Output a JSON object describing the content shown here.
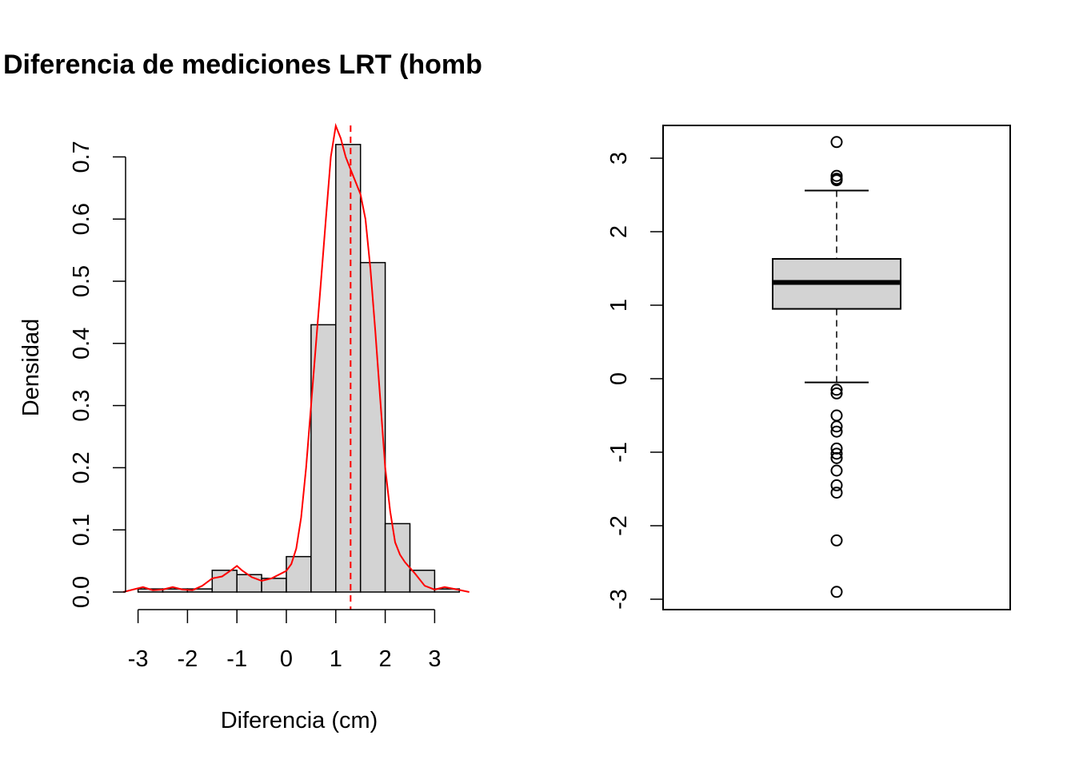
{
  "page_title": "Diferencia de mediciones LRT (homb",
  "chart_data": [
    {
      "type": "bar",
      "subtype": "histogram-with-density",
      "title": "Diferencia de mediciones LRT (homb",
      "xlabel": "Diferencia (cm)",
      "ylabel": "Densidad",
      "xlim": [
        -3.3,
        3.7
      ],
      "ylim": [
        0,
        0.75
      ],
      "x_ticks": [
        "-3",
        "-2",
        "-1",
        "0",
        "1",
        "2",
        "3"
      ],
      "y_ticks": [
        "0.0",
        "0.1",
        "0.2",
        "0.3",
        "0.4",
        "0.5",
        "0.6",
        "0.7"
      ],
      "bins": [
        {
          "from": -3.0,
          "to": -2.5,
          "density": 0.005
        },
        {
          "from": -2.5,
          "to": -2.0,
          "density": 0.005
        },
        {
          "from": -2.0,
          "to": -1.5,
          "density": 0.005
        },
        {
          "from": -1.5,
          "to": -1.0,
          "density": 0.035
        },
        {
          "from": -1.0,
          "to": -0.5,
          "density": 0.028
        },
        {
          "from": -0.5,
          "to": 0.0,
          "density": 0.022
        },
        {
          "from": 0.0,
          "to": 0.5,
          "density": 0.057
        },
        {
          "from": 0.5,
          "to": 1.0,
          "density": 0.43
        },
        {
          "from": 1.0,
          "to": 1.5,
          "density": 0.72
        },
        {
          "from": 1.5,
          "to": 2.0,
          "density": 0.53
        },
        {
          "from": 2.0,
          "to": 2.5,
          "density": 0.11
        },
        {
          "from": 2.5,
          "to": 3.0,
          "density": 0.035
        },
        {
          "from": 3.0,
          "to": 3.5,
          "density": 0.005
        }
      ],
      "bar_color": "#d3d3d3",
      "density_color": "#ff0000",
      "density_curve": {
        "x": [
          -3.3,
          -3.1,
          -2.9,
          -2.7,
          -2.5,
          -2.3,
          -2.1,
          -1.9,
          -1.7,
          -1.5,
          -1.3,
          -1.1,
          -1.0,
          -0.9,
          -0.7,
          -0.5,
          -0.3,
          -0.1,
          0.0,
          0.1,
          0.2,
          0.3,
          0.4,
          0.5,
          0.6,
          0.7,
          0.8,
          0.9,
          1.0,
          1.1,
          1.2,
          1.3,
          1.4,
          1.5,
          1.6,
          1.7,
          1.8,
          1.9,
          2.0,
          2.1,
          2.2,
          2.3,
          2.4,
          2.6,
          2.8,
          3.0,
          3.2,
          3.4,
          3.7
        ],
        "y": [
          0.0,
          0.004,
          0.008,
          0.003,
          0.004,
          0.008,
          0.004,
          0.003,
          0.01,
          0.022,
          0.025,
          0.036,
          0.042,
          0.035,
          0.024,
          0.018,
          0.022,
          0.03,
          0.034,
          0.045,
          0.07,
          0.12,
          0.2,
          0.3,
          0.4,
          0.5,
          0.6,
          0.7,
          0.75,
          0.73,
          0.7,
          0.68,
          0.66,
          0.64,
          0.6,
          0.52,
          0.42,
          0.31,
          0.2,
          0.13,
          0.08,
          0.06,
          0.048,
          0.03,
          0.01,
          0.004,
          0.008,
          0.005,
          0.0
        ]
      },
      "reference_line": {
        "x": 1.3,
        "style": "dashed",
        "color": "#ff0000"
      }
    },
    {
      "type": "box",
      "ylim": [
        -3.2,
        3.6
      ],
      "y_ticks": [
        "-3",
        "-2",
        "-1",
        "0",
        "1",
        "2",
        "3"
      ],
      "box_color": "#d3d3d3",
      "lower_whisker": -0.05,
      "q1": 0.95,
      "median": 1.31,
      "q3": 1.63,
      "upper_whisker": 2.56,
      "outliers": [
        3.22,
        2.76,
        2.72,
        2.7,
        -0.15,
        -0.2,
        -0.5,
        -0.65,
        -0.72,
        -0.95,
        -1.02,
        -1.08,
        -1.25,
        -1.45,
        -1.55,
        -2.2,
        -2.9
      ]
    }
  ]
}
